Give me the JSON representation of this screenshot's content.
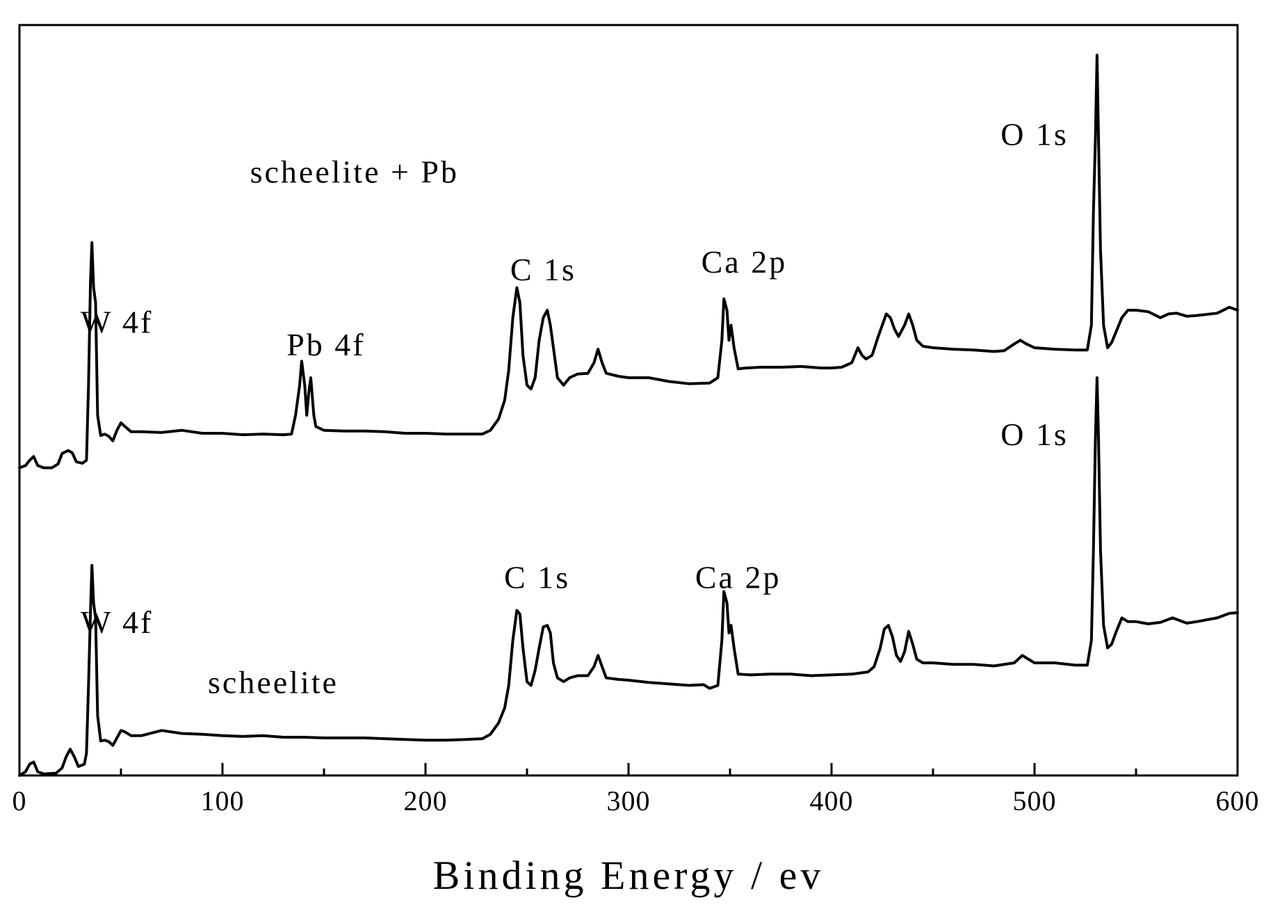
{
  "chart_data": {
    "type": "line",
    "xlabel": "Binding Energy / ev",
    "ylabel": "",
    "xlim": [
      0,
      600
    ],
    "xticks": [
      0,
      100,
      200,
      300,
      400,
      500,
      600
    ],
    "ylim": [
      0,
      100
    ],
    "yticks": [],
    "grid": false,
    "legend": "none",
    "series": [
      {
        "label": "scheelite + Pb",
        "points": [
          [
            0,
            41
          ],
          [
            3,
            41.3
          ],
          [
            5,
            42
          ],
          [
            7,
            42.5
          ],
          [
            9,
            41.3
          ],
          [
            12,
            41
          ],
          [
            16,
            41
          ],
          [
            19,
            41.5
          ],
          [
            21,
            42.9
          ],
          [
            24,
            43.3
          ],
          [
            26,
            43
          ],
          [
            28,
            41.8
          ],
          [
            31,
            41.6
          ],
          [
            33,
            42
          ],
          [
            34,
            52
          ],
          [
            35,
            66
          ],
          [
            35.7,
            71
          ],
          [
            36.5,
            65
          ],
          [
            37.5,
            63
          ],
          [
            38.5,
            48
          ],
          [
            40,
            45.3
          ],
          [
            42,
            45.5
          ],
          [
            44,
            45.2
          ],
          [
            46,
            44.6
          ],
          [
            48,
            46
          ],
          [
            50,
            47
          ],
          [
            52,
            46.5
          ],
          [
            55,
            45.8
          ],
          [
            60,
            45.8
          ],
          [
            70,
            45.7
          ],
          [
            80,
            46
          ],
          [
            90,
            45.6
          ],
          [
            100,
            45.6
          ],
          [
            110,
            45.4
          ],
          [
            120,
            45.5
          ],
          [
            130,
            45.4
          ],
          [
            134,
            45.5
          ],
          [
            136,
            48
          ],
          [
            138,
            52
          ],
          [
            139,
            55.2
          ],
          [
            140.5,
            52
          ],
          [
            141.5,
            48
          ],
          [
            142.5,
            51
          ],
          [
            143.5,
            53
          ],
          [
            145,
            48
          ],
          [
            146,
            46.5
          ],
          [
            150,
            46
          ],
          [
            160,
            45.9
          ],
          [
            170,
            45.9
          ],
          [
            180,
            45.8
          ],
          [
            190,
            45.6
          ],
          [
            200,
            45.6
          ],
          [
            210,
            45.5
          ],
          [
            220,
            45.5
          ],
          [
            228,
            45.5
          ],
          [
            232,
            46
          ],
          [
            236,
            47.5
          ],
          [
            239,
            50
          ],
          [
            241,
            54
          ],
          [
            243,
            61
          ],
          [
            245,
            65
          ],
          [
            246.5,
            63
          ],
          [
            248,
            56
          ],
          [
            250,
            52
          ],
          [
            252,
            51.5
          ],
          [
            254,
            53
          ],
          [
            256,
            58
          ],
          [
            258,
            61
          ],
          [
            260,
            62
          ],
          [
            261.5,
            60
          ],
          [
            263,
            57
          ],
          [
            265,
            53
          ],
          [
            268,
            52
          ],
          [
            271,
            53
          ],
          [
            275,
            53.5
          ],
          [
            280,
            53.6
          ],
          [
            283,
            55
          ],
          [
            285,
            56.8
          ],
          [
            287,
            55
          ],
          [
            289,
            53.6
          ],
          [
            295,
            53.2
          ],
          [
            300,
            53
          ],
          [
            310,
            53
          ],
          [
            320,
            52.5
          ],
          [
            330,
            52.2
          ],
          [
            340,
            52.3
          ],
          [
            344,
            53
          ],
          [
            346,
            58
          ],
          [
            347,
            63.5
          ],
          [
            348.5,
            62
          ],
          [
            349.5,
            58
          ],
          [
            350.5,
            60
          ],
          [
            352,
            57
          ],
          [
            354,
            54.2
          ],
          [
            358,
            54.3
          ],
          [
            365,
            54.4
          ],
          [
            375,
            54.4
          ],
          [
            385,
            54.5
          ],
          [
            395,
            54.3
          ],
          [
            400,
            54.3
          ],
          [
            405,
            54.4
          ],
          [
            410,
            55
          ],
          [
            413,
            57
          ],
          [
            415,
            56
          ],
          [
            417,
            55.5
          ],
          [
            420,
            56
          ],
          [
            423,
            58.5
          ],
          [
            425,
            60
          ],
          [
            427,
            61.5
          ],
          [
            429,
            61
          ],
          [
            431,
            59.5
          ],
          [
            433,
            58.5
          ],
          [
            436,
            60
          ],
          [
            438,
            61.5
          ],
          [
            440,
            60
          ],
          [
            442,
            58
          ],
          [
            445,
            57.2
          ],
          [
            450,
            57
          ],
          [
            460,
            56.8
          ],
          [
            470,
            56.7
          ],
          [
            480,
            56.5
          ],
          [
            485,
            56.6
          ],
          [
            490,
            57.5
          ],
          [
            493,
            58
          ],
          [
            496,
            57.5
          ],
          [
            500,
            57
          ],
          [
            510,
            56.8
          ],
          [
            520,
            56.7
          ],
          [
            526,
            56.7
          ],
          [
            528,
            60
          ],
          [
            529,
            75
          ],
          [
            530,
            85
          ],
          [
            530.8,
            96
          ],
          [
            531.5,
            85
          ],
          [
            532.5,
            70
          ],
          [
            534,
            60
          ],
          [
            536,
            57
          ],
          [
            538,
            57.7
          ],
          [
            540,
            59
          ],
          [
            543,
            61
          ],
          [
            546,
            62
          ],
          [
            550,
            62
          ],
          [
            556,
            61.8
          ],
          [
            562,
            61
          ],
          [
            566,
            61.5
          ],
          [
            570,
            61.6
          ],
          [
            575,
            61.2
          ],
          [
            580,
            61.3
          ],
          [
            590,
            61.6
          ],
          [
            596,
            62.4
          ],
          [
            600,
            62
          ]
        ]
      },
      {
        "label": "scheelite",
        "points": [
          [
            0,
            0
          ],
          [
            3,
            0.5
          ],
          [
            5,
            1.5
          ],
          [
            7,
            1.8
          ],
          [
            9,
            0.5
          ],
          [
            12,
            0.2
          ],
          [
            18,
            0.3
          ],
          [
            21,
            1
          ],
          [
            23,
            2.5
          ],
          [
            25,
            3.5
          ],
          [
            27,
            2.5
          ],
          [
            29,
            1.2
          ],
          [
            32,
            1.5
          ],
          [
            33,
            3
          ],
          [
            34,
            12
          ],
          [
            35,
            22
          ],
          [
            35.7,
            28
          ],
          [
            36.5,
            23
          ],
          [
            37.5,
            21
          ],
          [
            38.5,
            8
          ],
          [
            40,
            4.6
          ],
          [
            42,
            4.7
          ],
          [
            44,
            4.5
          ],
          [
            46,
            4
          ],
          [
            48,
            5
          ],
          [
            50,
            6
          ],
          [
            52,
            5.8
          ],
          [
            55,
            5.3
          ],
          [
            60,
            5.3
          ],
          [
            70,
            6
          ],
          [
            80,
            5.6
          ],
          [
            90,
            5.5
          ],
          [
            100,
            5.3
          ],
          [
            110,
            5.2
          ],
          [
            120,
            5.3
          ],
          [
            130,
            5.1
          ],
          [
            140,
            5.1
          ],
          [
            150,
            5
          ],
          [
            160,
            5
          ],
          [
            170,
            5
          ],
          [
            180,
            4.9
          ],
          [
            190,
            4.8
          ],
          [
            200,
            4.7
          ],
          [
            210,
            4.7
          ],
          [
            220,
            4.8
          ],
          [
            228,
            4.9
          ],
          [
            232,
            5.5
          ],
          [
            236,
            7
          ],
          [
            239,
            9
          ],
          [
            241,
            12
          ],
          [
            243,
            18
          ],
          [
            245,
            22
          ],
          [
            246.5,
            21.5
          ],
          [
            248,
            17
          ],
          [
            250,
            12.5
          ],
          [
            252,
            12
          ],
          [
            254,
            14
          ],
          [
            256,
            17
          ],
          [
            258,
            19.8
          ],
          [
            260,
            20
          ],
          [
            261.5,
            19
          ],
          [
            263,
            15
          ],
          [
            265,
            13
          ],
          [
            268,
            12.5
          ],
          [
            271,
            13
          ],
          [
            275,
            13.3
          ],
          [
            280,
            13.3
          ],
          [
            283,
            14.5
          ],
          [
            285,
            16
          ],
          [
            287,
            14.5
          ],
          [
            289,
            13
          ],
          [
            295,
            12.8
          ],
          [
            300,
            12.7
          ],
          [
            310,
            12.4
          ],
          [
            320,
            12.2
          ],
          [
            330,
            12
          ],
          [
            337,
            12.1
          ],
          [
            340,
            11.6
          ],
          [
            344,
            12
          ],
          [
            346,
            18
          ],
          [
            347,
            24.5
          ],
          [
            348.5,
            23
          ],
          [
            349.5,
            19
          ],
          [
            350.5,
            20
          ],
          [
            352,
            17
          ],
          [
            354,
            13.5
          ],
          [
            360,
            13.4
          ],
          [
            370,
            13.5
          ],
          [
            380,
            13.5
          ],
          [
            390,
            13.3
          ],
          [
            400,
            13.4
          ],
          [
            410,
            13.5
          ],
          [
            418,
            13.8
          ],
          [
            421,
            14.5
          ],
          [
            424,
            17
          ],
          [
            426,
            19.5
          ],
          [
            428,
            20
          ],
          [
            430,
            18.5
          ],
          [
            432,
            16
          ],
          [
            434,
            15.2
          ],
          [
            436,
            16.5
          ],
          [
            438,
            19.2
          ],
          [
            440,
            17.5
          ],
          [
            442,
            15.5
          ],
          [
            445,
            15
          ],
          [
            450,
            15
          ],
          [
            460,
            14.8
          ],
          [
            470,
            14.8
          ],
          [
            480,
            14.6
          ],
          [
            490,
            15
          ],
          [
            494,
            16
          ],
          [
            497,
            15.5
          ],
          [
            500,
            15
          ],
          [
            510,
            15
          ],
          [
            520,
            14.7
          ],
          [
            526,
            14.7
          ],
          [
            528,
            18
          ],
          [
            529,
            30
          ],
          [
            530,
            45
          ],
          [
            530.8,
            53
          ],
          [
            531.5,
            45
          ],
          [
            532.5,
            30
          ],
          [
            534,
            20
          ],
          [
            536,
            17
          ],
          [
            538,
            17.5
          ],
          [
            540,
            19
          ],
          [
            543,
            21
          ],
          [
            546,
            20.5
          ],
          [
            550,
            20.5
          ],
          [
            556,
            20.2
          ],
          [
            562,
            20.4
          ],
          [
            568,
            21
          ],
          [
            575,
            20.3
          ],
          [
            580,
            20.5
          ],
          [
            590,
            21
          ],
          [
            596,
            21.6
          ],
          [
            600,
            21.7
          ]
        ]
      }
    ],
    "annotations": [
      {
        "text": "scheelite + Pb",
        "x": 165,
        "y": 79
      },
      {
        "text": "W 4f",
        "x": 48,
        "y": 59
      },
      {
        "text": "Pb 4f",
        "x": 151,
        "y": 56
      },
      {
        "text": "C 1s",
        "x": 258,
        "y": 66
      },
      {
        "text": "Ca 2p",
        "x": 357,
        "y": 67
      },
      {
        "text": "O 1s",
        "x": 500,
        "y": 84
      },
      {
        "text": "O 1s",
        "x": 500,
        "y": 44
      },
      {
        "text": "C 1s",
        "x": 255,
        "y": 25
      },
      {
        "text": "Ca 2p",
        "x": 354,
        "y": 25
      },
      {
        "text": "W 4f",
        "x": 48,
        "y": 19
      },
      {
        "text": "scheelite",
        "x": 125,
        "y": 11
      }
    ]
  }
}
